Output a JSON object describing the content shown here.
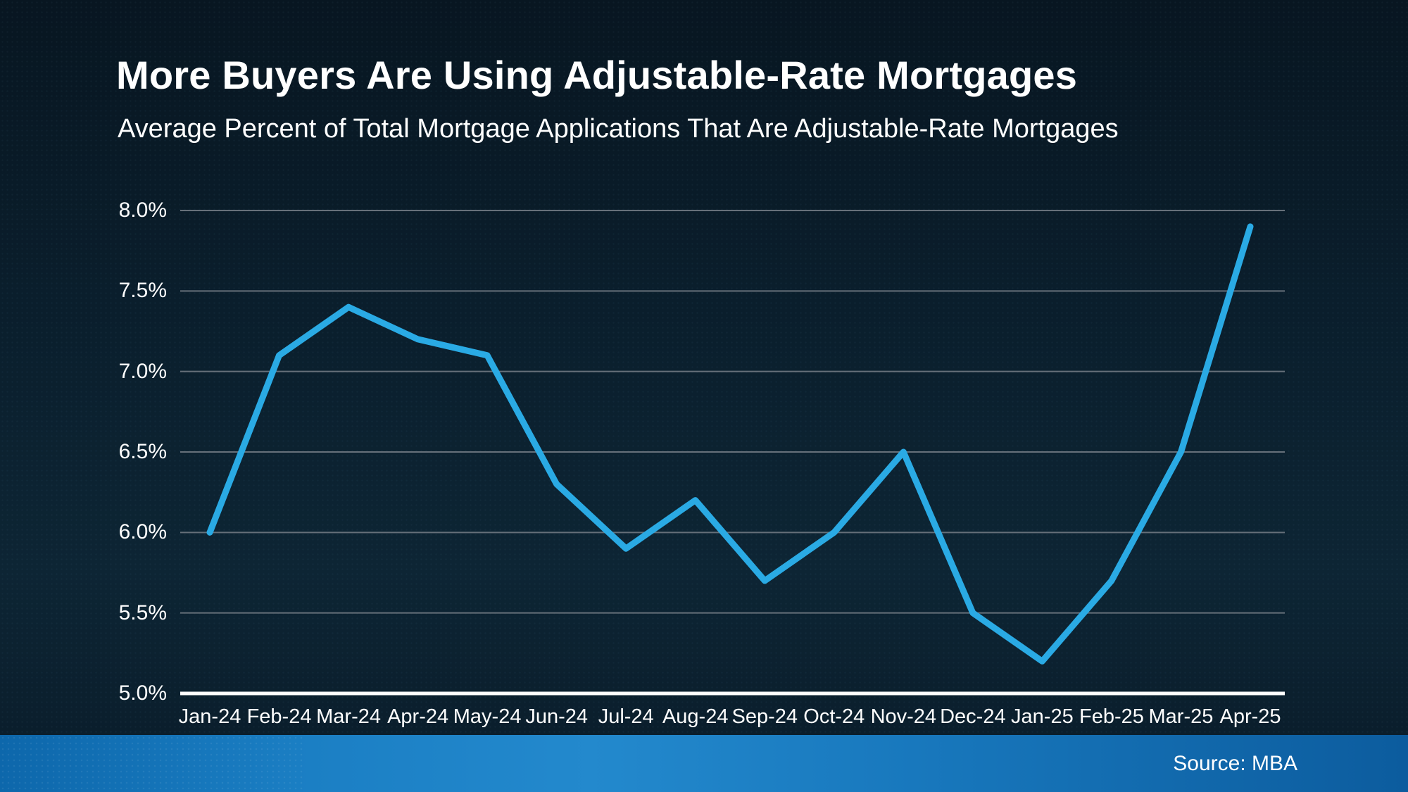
{
  "header": {
    "title": "More Buyers Are Using Adjustable-Rate Mortgages",
    "subtitle": "Average Percent of Total Mortgage Applications That Are Adjustable-Rate Mortgages"
  },
  "footer": {
    "source": "Source: MBA"
  },
  "colors": {
    "line": "#2aaae4",
    "grid": "#66707a",
    "axis": "#ffffff",
    "text": "#ffffff",
    "background_top": "#081621",
    "background_bottom": "#0a1d2b",
    "band_left": "#0d67ab",
    "band_mid": "#2389cd",
    "band_right": "#0c5c9e"
  },
  "chart_data": {
    "type": "line",
    "title": "More Buyers Are Using Adjustable-Rate Mortgages",
    "subtitle": "Average Percent of Total Mortgage Applications That Are Adjustable-Rate Mortgages",
    "source": "Source: MBA",
    "categories": [
      "Jan-24",
      "Feb-24",
      "Mar-24",
      "Apr-24",
      "May-24",
      "Jun-24",
      "Jul-24",
      "Aug-24",
      "Sep-24",
      "Oct-24",
      "Nov-24",
      "Dec-24",
      "Jan-25",
      "Feb-25",
      "Mar-25",
      "Apr-25"
    ],
    "values": [
      6.0,
      7.1,
      7.4,
      7.2,
      7.1,
      6.3,
      5.9,
      6.2,
      5.7,
      6.0,
      6.5,
      5.5,
      5.2,
      5.7,
      6.5,
      7.9
    ],
    "ylim": [
      5.0,
      8.0
    ],
    "yticks": [
      {
        "value": 8.0,
        "label": "8.0%"
      },
      {
        "value": 7.5,
        "label": "7.5%"
      },
      {
        "value": 7.0,
        "label": "7.0%"
      },
      {
        "value": 6.5,
        "label": "6.5%"
      },
      {
        "value": 6.0,
        "label": "6.0%"
      },
      {
        "value": 5.5,
        "label": "5.5%"
      },
      {
        "value": 5.0,
        "label": "5.0%"
      }
    ],
    "grid": "horizontal",
    "legend": "none"
  }
}
